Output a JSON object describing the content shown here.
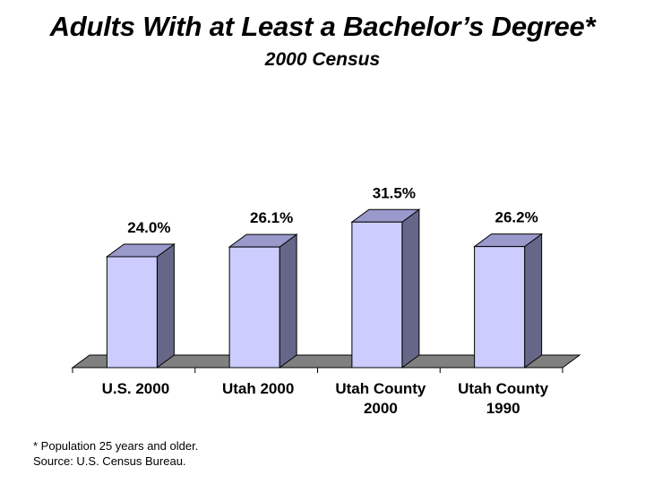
{
  "title": "Adults With at Least a Bachelor’s Degree*",
  "subtitle": "2000 Census",
  "footnotes": {
    "note": "* Population 25 years and older.",
    "source": "Source: U.S. Census Bureau."
  },
  "colors": {
    "bar_front": "#ccccff",
    "bar_top": "#9999cc",
    "bar_side": "#666688",
    "floor": "#808080"
  },
  "chart_data": {
    "type": "bar",
    "categories": [
      [
        "U.S. 2000"
      ],
      [
        "Utah 2000"
      ],
      [
        "Utah County",
        "2000"
      ],
      [
        "Utah County",
        "1990"
      ]
    ],
    "values": [
      24.0,
      26.1,
      31.5,
      26.2
    ],
    "labels": [
      "24.0%",
      "26.1%",
      "31.5%",
      "26.2%"
    ],
    "unit": "%",
    "ylim": [
      0,
      32
    ],
    "style": "3d-column",
    "grid": false,
    "legend": false
  }
}
